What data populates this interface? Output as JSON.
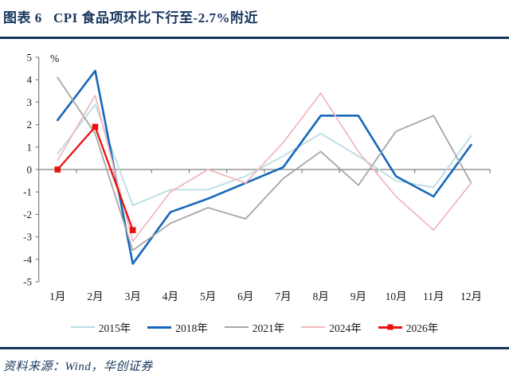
{
  "header": {
    "title": "图表 6   CPI 食品项环比下行至-2.7%附近",
    "accent_color": "#17365d"
  },
  "chart_data": {
    "type": "line",
    "title": "CPI 食品项环比下行至-2.7%附近",
    "unit_label": "%",
    "categories": [
      "1月",
      "2月",
      "3月",
      "4月",
      "5月",
      "6月",
      "7月",
      "8月",
      "9月",
      "10月",
      "11月",
      "12月"
    ],
    "series": [
      {
        "name": "2015年",
        "color": "#b9dce6",
        "values": [
          0.7,
          2.9,
          -1.6,
          -0.9,
          -0.9,
          -0.3,
          0.6,
          1.6,
          0.6,
          -0.5,
          -0.8,
          1.5
        ]
      },
      {
        "name": "2018年",
        "color": "#1668b9",
        "values": [
          2.2,
          4.4,
          -4.2,
          -1.9,
          -1.3,
          -0.6,
          0.1,
          2.4,
          2.4,
          -0.3,
          -1.2,
          1.1
        ]
      },
      {
        "name": "2021年",
        "color": "#a6a6a6",
        "values": [
          4.1,
          1.6,
          -3.6,
          -2.4,
          -1.7,
          -2.2,
          -0.4,
          0.8,
          -0.7,
          1.7,
          2.4,
          -0.6
        ]
      },
      {
        "name": "2024年",
        "color": "#f2b9c0",
        "values": [
          0.4,
          3.3,
          -3.2,
          -1.0,
          0.0,
          -0.6,
          1.2,
          3.4,
          0.8,
          -1.2,
          -2.7,
          -0.6
        ]
      },
      {
        "name": "2026年",
        "color": "#e8120f",
        "marker": "square",
        "values": [
          0.0,
          1.9,
          -2.7,
          null,
          null,
          null,
          null,
          null,
          null,
          null,
          null,
          null
        ]
      }
    ],
    "ylim": [
      -5,
      5
    ],
    "ytick_step": 1,
    "grid": false,
    "legend_position": "bottom",
    "axis_color": "#808080",
    "text_color": "#1a1a1a"
  },
  "footer": {
    "source": "资料来源：Wind，华创证券"
  }
}
